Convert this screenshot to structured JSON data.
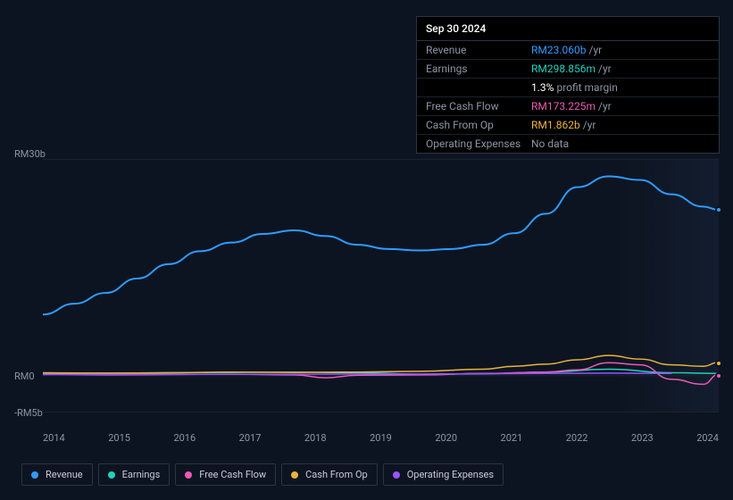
{
  "tooltip": {
    "date": "Sep 30 2024",
    "rows": [
      {
        "label": "Revenue",
        "value": "RM23.060b",
        "value_color": "#2f9bff",
        "suffix": "/yr"
      },
      {
        "label": "Earnings",
        "value": "RM298.856m",
        "value_color": "#1fd1bf",
        "suffix": "/yr"
      },
      {
        "label": "",
        "value": "1.3%",
        "value_color": "#ffffff",
        "suffix": "profit margin"
      },
      {
        "label": "Free Cash Flow",
        "value": "RM173.225m",
        "value_color": "#e85bb5",
        "suffix": "/yr"
      },
      {
        "label": "Cash From Op",
        "value": "RM1.862b",
        "value_color": "#e8b43c",
        "suffix": "/yr"
      },
      {
        "label": "Operating Expenses",
        "value": "No data",
        "value_color": "#8a95a5",
        "suffix": ""
      }
    ]
  },
  "chart": {
    "type": "line",
    "background_color": "#0d1421",
    "grid_color": "#1a2332",
    "label_color": "#8a95a5",
    "label_fontsize": 11,
    "y_axis": {
      "ticks": [
        {
          "label": "RM30b",
          "value": 30
        },
        {
          "label": "RM0",
          "value": 0
        },
        {
          "label": "-RM5b",
          "value": -5
        }
      ],
      "min": -5,
      "max": 30
    },
    "x_axis": {
      "labels": [
        "2014",
        "2015",
        "2016",
        "2017",
        "2018",
        "2019",
        "2020",
        "2021",
        "2022",
        "2023",
        "2024"
      ],
      "min": 2014,
      "max": 2024.75
    },
    "series": [
      {
        "name": "Revenue",
        "color": "#2f9bff",
        "line_width": 2,
        "points": [
          [
            2014,
            8.5
          ],
          [
            2014.5,
            10
          ],
          [
            2015,
            11.5
          ],
          [
            2015.5,
            13.5
          ],
          [
            2016,
            15.5
          ],
          [
            2016.5,
            17.3
          ],
          [
            2017,
            18.5
          ],
          [
            2017.5,
            19.7
          ],
          [
            2018,
            20.2
          ],
          [
            2018.5,
            19.4
          ],
          [
            2019,
            18.2
          ],
          [
            2019.5,
            17.6
          ],
          [
            2020,
            17.4
          ],
          [
            2020.5,
            17.6
          ],
          [
            2021,
            18.2
          ],
          [
            2021.5,
            19.8
          ],
          [
            2022,
            22.5
          ],
          [
            2022.5,
            26.2
          ],
          [
            2023,
            27.7
          ],
          [
            2023.5,
            27.2
          ],
          [
            2024,
            25.2
          ],
          [
            2024.5,
            23.5
          ],
          [
            2024.75,
            23.06
          ]
        ]
      },
      {
        "name": "Earnings",
        "color": "#1fd1bf",
        "line_width": 1.5,
        "points": [
          [
            2014,
            0.3
          ],
          [
            2015,
            0.35
          ],
          [
            2016,
            0.4
          ],
          [
            2017,
            0.45
          ],
          [
            2018,
            0.5
          ],
          [
            2019,
            0.4
          ],
          [
            2020,
            0.2
          ],
          [
            2021,
            0.25
          ],
          [
            2022,
            0.5
          ],
          [
            2023,
            0.9
          ],
          [
            2024,
            0.4
          ],
          [
            2024.75,
            0.3
          ]
        ]
      },
      {
        "name": "Free Cash Flow",
        "color": "#e85bb5",
        "line_width": 1.5,
        "points": [
          [
            2014,
            0.2
          ],
          [
            2015,
            0.1
          ],
          [
            2016,
            0.15
          ],
          [
            2017,
            0.2
          ],
          [
            2018,
            0.1
          ],
          [
            2018.5,
            -0.3
          ],
          [
            2019,
            0.05
          ],
          [
            2020,
            0.1
          ],
          [
            2021,
            0.3
          ],
          [
            2022,
            0.5
          ],
          [
            2022.5,
            0.8
          ],
          [
            2023,
            1.8
          ],
          [
            2023.5,
            1.5
          ],
          [
            2024,
            -0.5
          ],
          [
            2024.5,
            -1.2
          ],
          [
            2024.75,
            0.17
          ]
        ]
      },
      {
        "name": "Cash From Op",
        "color": "#e8b43c",
        "line_width": 1.5,
        "points": [
          [
            2014,
            0.4
          ],
          [
            2015,
            0.35
          ],
          [
            2016,
            0.4
          ],
          [
            2017,
            0.5
          ],
          [
            2018,
            0.45
          ],
          [
            2019,
            0.5
          ],
          [
            2020,
            0.6
          ],
          [
            2021,
            0.9
          ],
          [
            2021.5,
            1.3
          ],
          [
            2022,
            1.6
          ],
          [
            2022.5,
            2.2
          ],
          [
            2023,
            2.8
          ],
          [
            2023.5,
            2.3
          ],
          [
            2024,
            1.5
          ],
          [
            2024.5,
            1.3
          ],
          [
            2024.75,
            1.86
          ]
        ]
      },
      {
        "name": "Operating Expenses",
        "color": "#9655ff",
        "line_width": 1.5,
        "points": [
          [
            2014,
            0.15
          ],
          [
            2016,
            0.18
          ],
          [
            2018,
            0.2
          ],
          [
            2020,
            0.22
          ],
          [
            2022,
            0.3
          ],
          [
            2023,
            0.35
          ],
          [
            2024,
            0.3
          ]
        ]
      }
    ],
    "end_markers": [
      {
        "series": "Revenue",
        "x": 2024.75,
        "y": 23.06,
        "color": "#2f9bff"
      },
      {
        "series": "Cash From Op",
        "x": 2024.75,
        "y": 1.86,
        "color": "#e8b43c"
      },
      {
        "series": "Free Cash Flow",
        "x": 2024.75,
        "y": 0.17,
        "color": "#e85bb5"
      }
    ]
  },
  "legend": [
    {
      "label": "Revenue",
      "color": "#2f9bff"
    },
    {
      "label": "Earnings",
      "color": "#1fd1bf"
    },
    {
      "label": "Free Cash Flow",
      "color": "#e85bb5"
    },
    {
      "label": "Cash From Op",
      "color": "#e8b43c"
    },
    {
      "label": "Operating Expenses",
      "color": "#9655ff"
    }
  ]
}
